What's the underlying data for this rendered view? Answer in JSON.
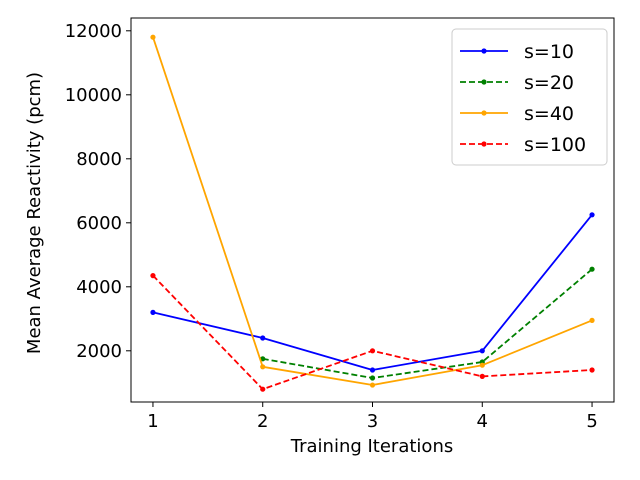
{
  "chart_data": {
    "type": "line",
    "title": "",
    "xlabel": "Training Iterations",
    "ylabel": "Mean Average Reactivity (pcm)",
    "x": [
      1,
      2,
      3,
      4,
      5
    ],
    "x_ticks": [
      "1",
      "2",
      "3",
      "4",
      "5"
    ],
    "y_ticks": [
      2000,
      4000,
      6000,
      8000,
      10000,
      12000
    ],
    "xlim": [
      0.8,
      5.2
    ],
    "ylim": [
      400,
      12400
    ],
    "grid": false,
    "legend_position": "top-right",
    "series": [
      {
        "name": "s=10",
        "color": "#0000ff",
        "dash": "solid",
        "x": [
          1,
          2,
          3,
          4,
          5
        ],
        "values": [
          3200,
          2400,
          1400,
          2000,
          6250
        ]
      },
      {
        "name": "s=20",
        "color": "#008000",
        "dash": "dashed",
        "x": [
          2,
          3,
          4,
          5
        ],
        "values": [
          1750,
          1150,
          1650,
          4550
        ]
      },
      {
        "name": "s=40",
        "color": "#ffa500",
        "dash": "solid",
        "x": [
          1,
          2,
          3,
          4,
          5
        ],
        "values": [
          11800,
          1500,
          930,
          1550,
          2950
        ]
      },
      {
        "name": "s=100",
        "color": "#ff0000",
        "dash": "dashed",
        "x": [
          1,
          2,
          3,
          4,
          5
        ],
        "values": [
          4350,
          800,
          2000,
          1200,
          1400
        ]
      }
    ]
  }
}
